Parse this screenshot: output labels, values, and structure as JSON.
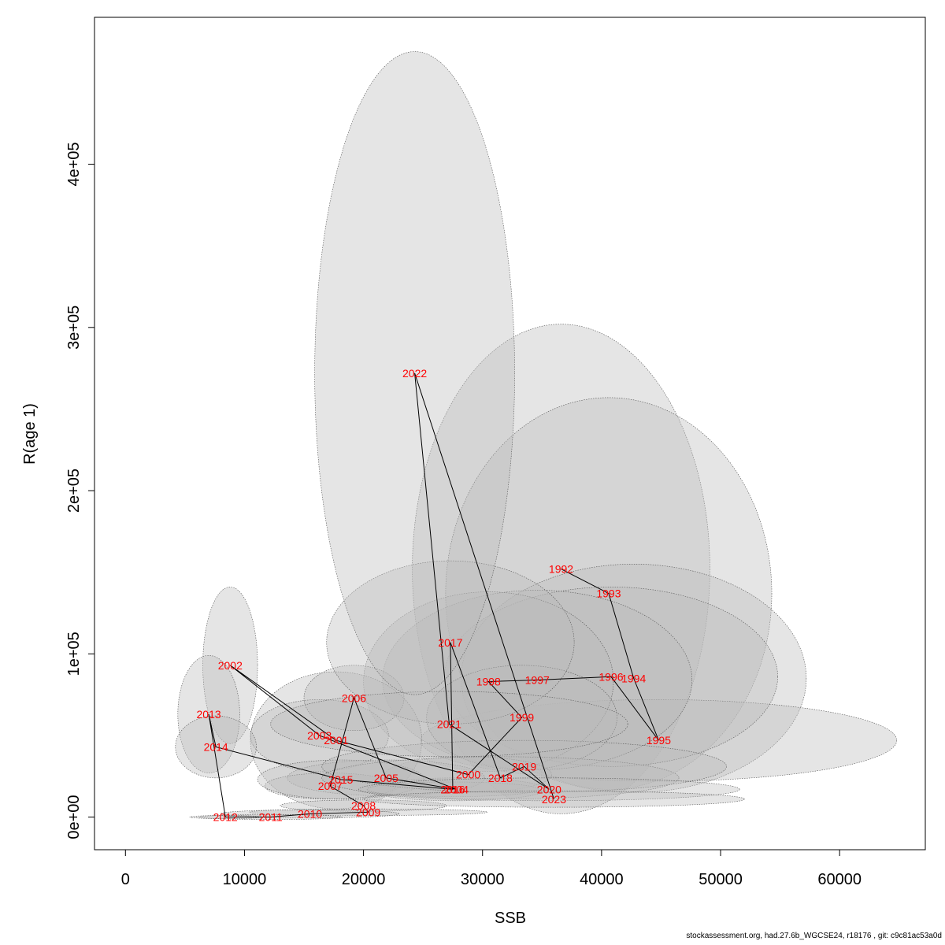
{
  "chart_data": {
    "type": "scatter",
    "xlabel": "SSB",
    "ylabel": "R(age 1)",
    "xlim": [
      -2600,
      67200
    ],
    "ylim": [
      -20000,
      490000
    ],
    "x_ticks": [
      {
        "value": 0,
        "label": "0"
      },
      {
        "value": 10000,
        "label": "10000"
      },
      {
        "value": 20000,
        "label": "20000"
      },
      {
        "value": 30000,
        "label": "30000"
      },
      {
        "value": 40000,
        "label": "40000"
      },
      {
        "value": 50000,
        "label": "50000"
      },
      {
        "value": 60000,
        "label": "60000"
      }
    ],
    "y_ticks": [
      {
        "value": 0,
        "label": "0e+00"
      },
      {
        "value": 100000,
        "label": "1e+05"
      },
      {
        "value": 200000,
        "label": "2e+05"
      },
      {
        "value": 300000,
        "label": "3e+05"
      },
      {
        "value": 400000,
        "label": "4e+05"
      }
    ],
    "grid": false,
    "ellipse_color": "#bbbbbb",
    "line_color": "#000000",
    "label_color": "#ff0000",
    "points": [
      {
        "year": "1992",
        "x": 36600,
        "y": 152000,
        "rx": 12500,
        "ry": 150000
      },
      {
        "year": "1993",
        "x": 40600,
        "y": 137000,
        "rx": 13700,
        "ry": 120000
      },
      {
        "year": "1994",
        "x": 42700,
        "y": 85000,
        "rx": 14500,
        "ry": 70000
      },
      {
        "year": "1995",
        "x": 44800,
        "y": 47000,
        "rx": 20000,
        "ry": 25000
      },
      {
        "year": "1996",
        "x": 40800,
        "y": 86000,
        "rx": 14000,
        "ry": 55000
      },
      {
        "year": "1997",
        "x": 34600,
        "y": 84000,
        "rx": 13000,
        "ry": 55000
      },
      {
        "year": "1998",
        "x": 30500,
        "y": 83000,
        "rx": 10500,
        "ry": 55000
      },
      {
        "year": "1999",
        "x": 33300,
        "y": 61000,
        "rx": 8000,
        "ry": 32000
      },
      {
        "year": "2000",
        "x": 28800,
        "y": 26000,
        "rx": 7000,
        "ry": 11000
      },
      {
        "year": "2001",
        "x": 17700,
        "y": 47000,
        "rx": 7200,
        "ry": 42000
      },
      {
        "year": "2002",
        "x": 8800,
        "y": 93000,
        "rx": 2300,
        "ry": 48000
      },
      {
        "year": "2003",
        "x": 16300,
        "y": 50000,
        "rx": 5800,
        "ry": 22000
      },
      {
        "year": "2004",
        "x": 27800,
        "y": 17000,
        "rx": 7500,
        "ry": 7000
      },
      {
        "year": "2005",
        "x": 21900,
        "y": 24000,
        "rx": 8300,
        "ry": 11000
      },
      {
        "year": "2006",
        "x": 19200,
        "y": 73000,
        "rx": 4200,
        "ry": 20000
      },
      {
        "year": "2007",
        "x": 17200,
        "y": 19000,
        "rx": 5500,
        "ry": 8000
      },
      {
        "year": "2008",
        "x": 20000,
        "y": 7000,
        "rx": 7000,
        "ry": 3500
      },
      {
        "year": "2009",
        "x": 20400,
        "y": 3000,
        "rx": 10000,
        "ry": 2000
      },
      {
        "year": "2010",
        "x": 15500,
        "y": 2000,
        "rx": 7500,
        "ry": 2500
      },
      {
        "year": "2011",
        "x": 12200,
        "y": 0,
        "rx": 6000,
        "ry": 1500
      },
      {
        "year": "2012",
        "x": 8400,
        "y": 0,
        "rx": 3000,
        "ry": 1000
      },
      {
        "year": "2013",
        "x": 7000,
        "y": 63000,
        "rx": 2600,
        "ry": 36000
      },
      {
        "year": "2014",
        "x": 7600,
        "y": 43000,
        "rx": 3400,
        "ry": 19000
      },
      {
        "year": "2015",
        "x": 18100,
        "y": 23000,
        "rx": 7000,
        "ry": 12000
      },
      {
        "year": "2016",
        "x": 27500,
        "y": 17000,
        "rx": 7200,
        "ry": 4500
      },
      {
        "year": "2017",
        "x": 27300,
        "y": 107000,
        "rx": 10400,
        "ry": 50000
      },
      {
        "year": "2018",
        "x": 31500,
        "y": 24000,
        "rx": 15000,
        "ry": 13000
      },
      {
        "year": "2019",
        "x": 33500,
        "y": 31000,
        "rx": 17000,
        "ry": 16000
      },
      {
        "year": "2020",
        "x": 35600,
        "y": 17000,
        "rx": 16000,
        "ry": 7000
      },
      {
        "year": "2021",
        "x": 27200,
        "y": 57000,
        "rx": 15000,
        "ry": 20000
      },
      {
        "year": "2022",
        "x": 24300,
        "y": 272000,
        "rx": 8400,
        "ry": 197000
      },
      {
        "year": "2023",
        "x": 36000,
        "y": 11000,
        "rx": 16000,
        "ry": 5000
      }
    ]
  },
  "footer": "stockassessment.org, had.27.6b_WGCSE24, r18176 , git: c9c81ac53a0d"
}
